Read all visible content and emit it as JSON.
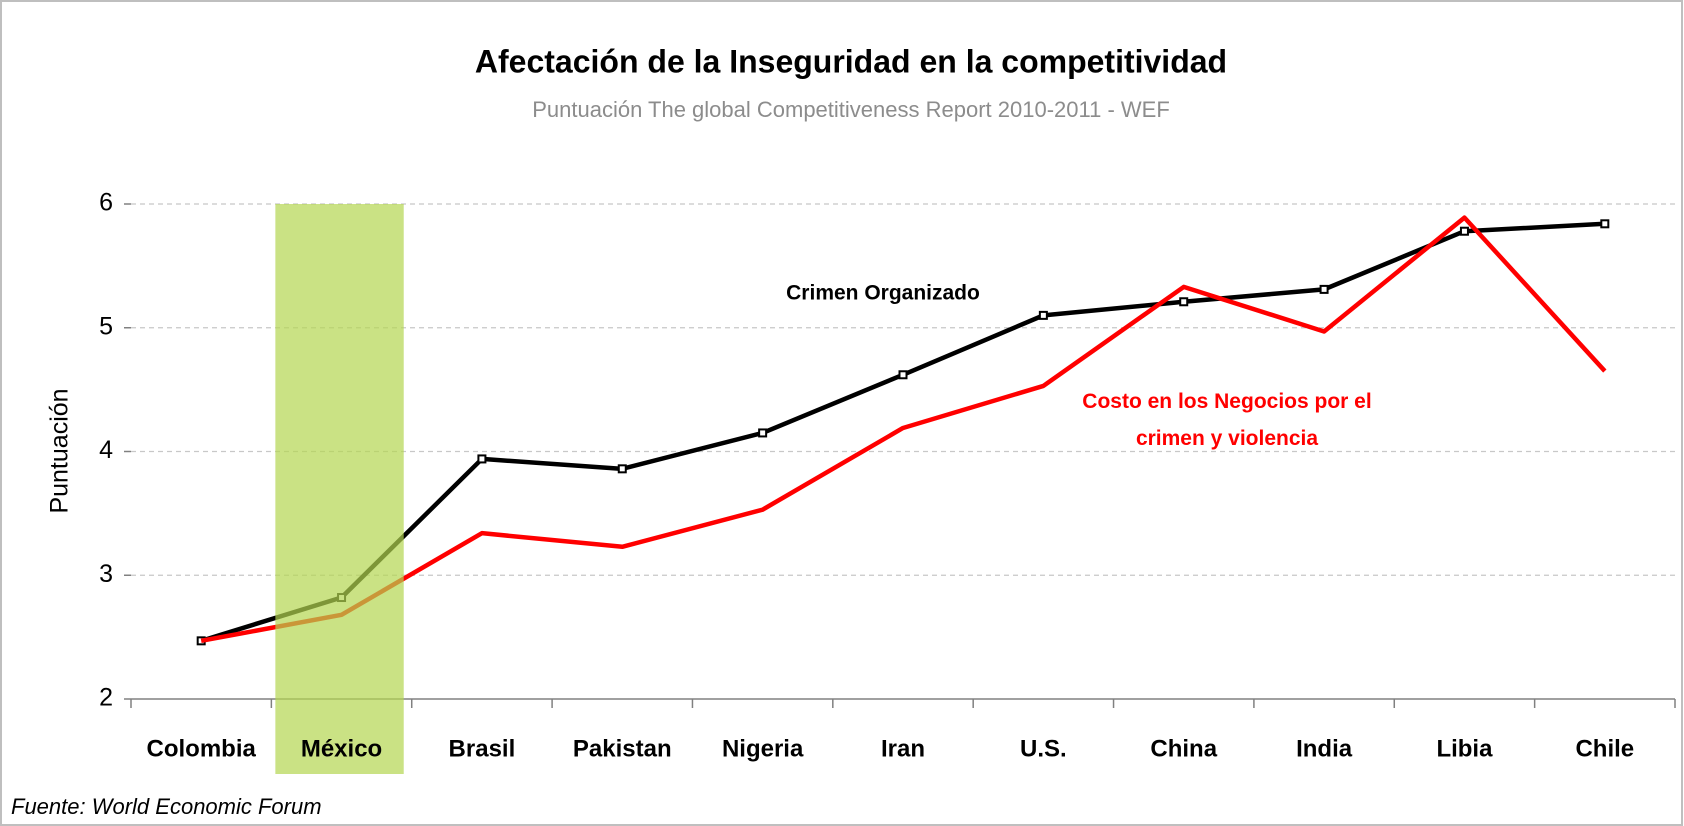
{
  "chart_data": {
    "type": "line",
    "title": "Afectación de la Inseguridad en la competitividad",
    "subtitle": "Puntuación The global Competitiveness Report 2010-2011 - WEF",
    "y_label": "Puntuación",
    "footnote": "Fuente: World Economic Forum",
    "categories": [
      "Colombia",
      "México",
      "Brasil",
      "Pakistan",
      "Nigeria",
      "Iran",
      "U.S.",
      "China",
      "India",
      "Libia",
      "Chile"
    ],
    "series": [
      {
        "name": "Crimen Organizado",
        "color": "#000000",
        "values": [
          2.47,
          2.82,
          3.94,
          3.86,
          4.15,
          4.62,
          5.1,
          5.21,
          5.31,
          5.78,
          5.84
        ]
      },
      {
        "name": "Costo en los Negocios por el crimen y violencia",
        "color": "#ff0000",
        "values": [
          2.47,
          2.68,
          3.34,
          3.23,
          3.53,
          4.19,
          4.53,
          5.33,
          4.97,
          5.89,
          4.65
        ]
      }
    ],
    "ylim": [
      2,
      6
    ],
    "yticks": [
      2,
      3,
      4,
      5,
      6
    ],
    "grid": true,
    "highlight_category": 1,
    "highlight_color": "#b3d650"
  }
}
